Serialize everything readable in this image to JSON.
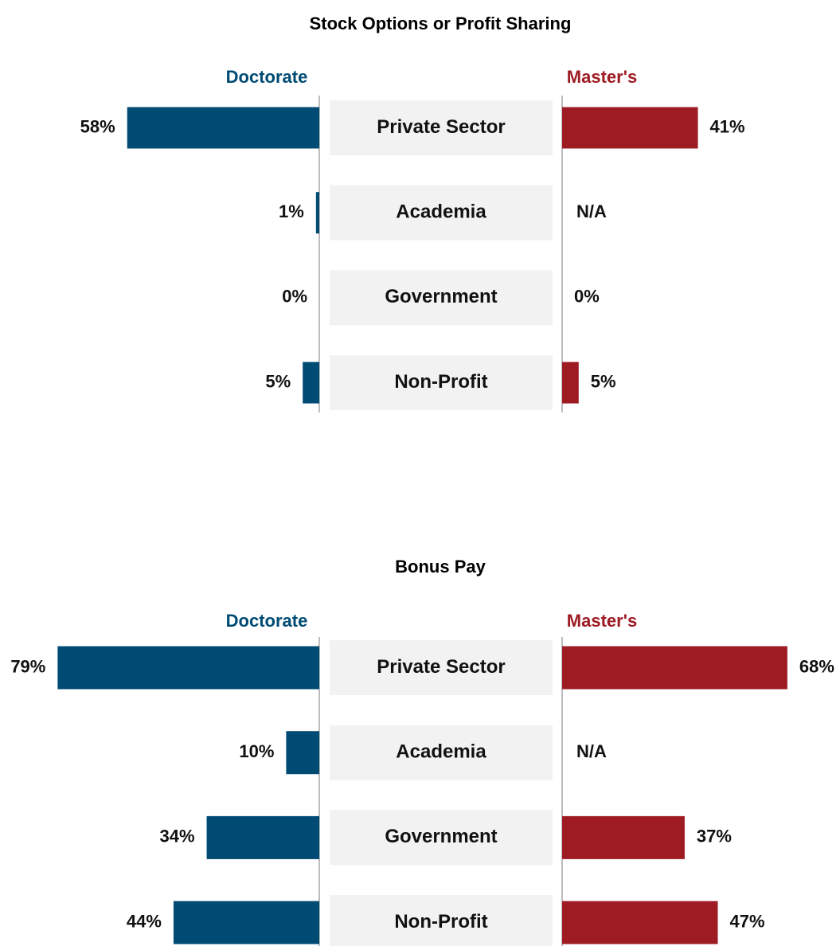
{
  "chart_data": [
    {
      "type": "bar",
      "title": "Stock Options or Profit Sharing",
      "categories": [
        "Private Sector",
        "Academia",
        "Government",
        "Non-Profit"
      ],
      "series": [
        {
          "name": "Doctorate",
          "color": "#004b73",
          "values": [
            58,
            1,
            0,
            5
          ],
          "labels": [
            "58%",
            "1%",
            "0%",
            "5%"
          ]
        },
        {
          "name": "Master's",
          "color": "#9e1b24",
          "values": [
            41,
            null,
            0,
            5
          ],
          "labels": [
            "41%",
            "N/A",
            "0%",
            "5%"
          ]
        }
      ],
      "xlim": [
        0,
        80
      ],
      "legend": "top"
    },
    {
      "type": "bar",
      "title": "Bonus Pay",
      "categories": [
        "Private Sector",
        "Academia",
        "Government",
        "Non-Profit"
      ],
      "series": [
        {
          "name": "Doctorate",
          "color": "#004b73",
          "values": [
            79,
            10,
            34,
            44
          ],
          "labels": [
            "79%",
            "10%",
            "34%",
            "44%"
          ]
        },
        {
          "name": "Master's",
          "color": "#9e1b24",
          "values": [
            68,
            null,
            37,
            47
          ],
          "labels": [
            "68%",
            "N/A",
            "37%",
            "47%"
          ]
        }
      ],
      "xlim": [
        0,
        80
      ],
      "legend": "top"
    }
  ]
}
